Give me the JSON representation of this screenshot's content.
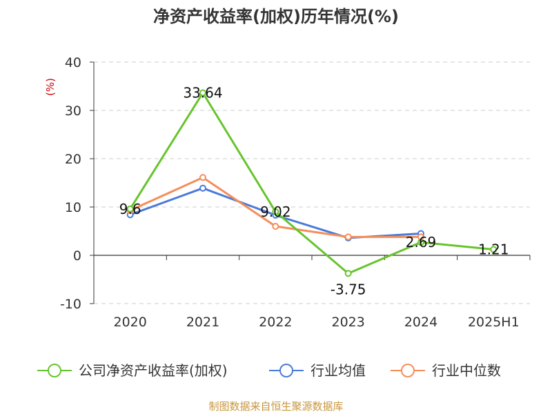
{
  "chart_data": {
    "type": "line",
    "title": "净资产收益率(加权)历年情况(%)",
    "ylabel": "(%)",
    "categories": [
      "2020",
      "2021",
      "2022",
      "2023",
      "2024",
      "2025H1"
    ],
    "ylim": [
      -10,
      40
    ],
    "yticks": [
      "40",
      "30",
      "20",
      "10",
      "0",
      "-10"
    ],
    "grid": true,
    "legend_position": "bottom",
    "series": [
      {
        "name": "公司净资产收益率(加权)",
        "color": "#66c42b",
        "values": [
          9.6,
          33.64,
          9.02,
          -3.75,
          2.69,
          1.21
        ],
        "labels": [
          "9.6",
          "33.64",
          "9.02",
          "-3.75",
          "2.69",
          "1.21"
        ]
      },
      {
        "name": "行业均值",
        "color": "#4a7ad8",
        "values": [
          8.4,
          13.9,
          8.3,
          3.6,
          4.5,
          null
        ]
      },
      {
        "name": "行业中位数",
        "color": "#f58d5a",
        "values": [
          9.3,
          16.1,
          6.0,
          3.8,
          3.8,
          null
        ]
      }
    ]
  },
  "source": "制图数据来自恒生聚源数据库"
}
